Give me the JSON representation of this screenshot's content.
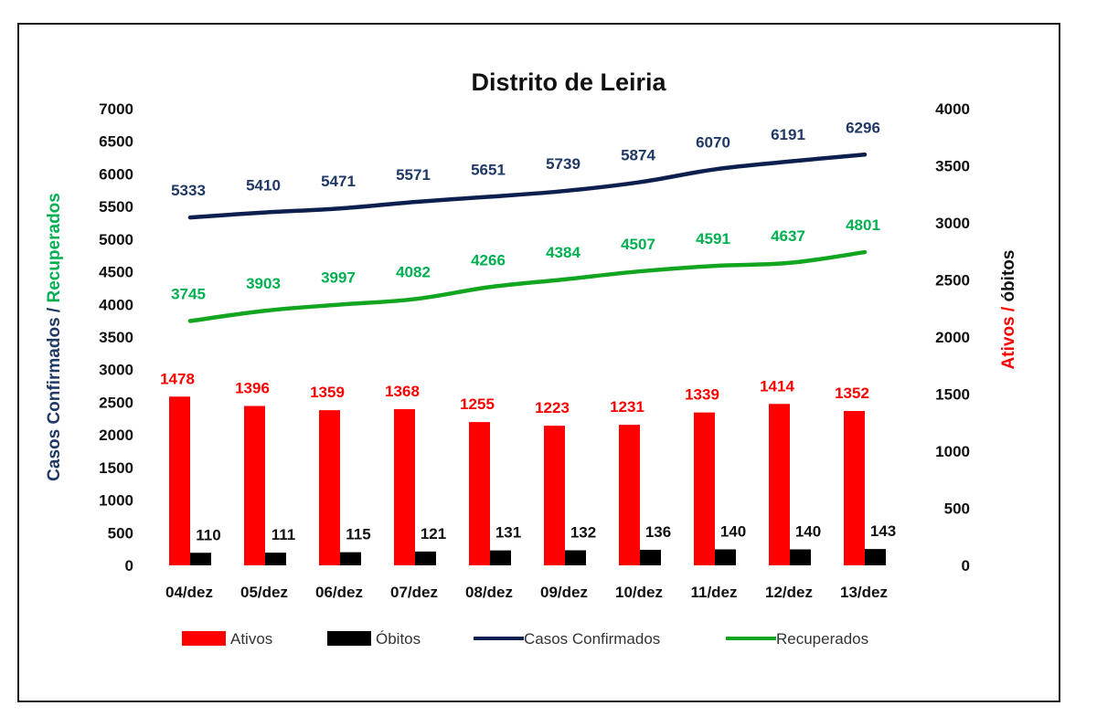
{
  "chart_data": {
    "type": "bar",
    "title": "Distrito de Leiria",
    "categories": [
      "04/dez",
      "05/dez",
      "06/dez",
      "07/dez",
      "08/dez",
      "09/dez",
      "10/dez",
      "11/dez",
      "12/dez",
      "13/dez"
    ],
    "left_axis": {
      "title_parts": [
        {
          "text": "Casos Confirmados",
          "color": "#1f3864"
        },
        {
          "text": " / ",
          "color": "#1f3864"
        },
        {
          "text": "Recuperados",
          "color": "#00b050"
        }
      ],
      "ylim": [
        0,
        7000
      ],
      "ticks": [
        "0",
        "500",
        "1000",
        "1500",
        "2000",
        "2500",
        "3000",
        "3500",
        "4000",
        "4500",
        "5000",
        "5500",
        "6000",
        "6500",
        "7000"
      ]
    },
    "right_axis": {
      "title_parts": [
        {
          "text": "Ativos",
          "color": "#ff0000"
        },
        {
          "text": " / ",
          "color": "#ff0000"
        },
        {
          "text": "óbitos",
          "color": "#111111"
        }
      ],
      "ylim": [
        0,
        4000
      ],
      "ticks": [
        "0",
        "500",
        "1000",
        "1500",
        "2000",
        "2500",
        "3000",
        "3500",
        "4000"
      ]
    },
    "series": [
      {
        "name": "Ativos",
        "kind": "bar",
        "axis": "right",
        "color": "#ff0000",
        "label_color": "#ff0000",
        "values": [
          1478,
          1396,
          1359,
          1368,
          1255,
          1223,
          1231,
          1339,
          1414,
          1352
        ]
      },
      {
        "name": "Óbitos",
        "kind": "bar",
        "axis": "right",
        "color": "#000000",
        "label_color": "#111111",
        "values": [
          110,
          111,
          115,
          121,
          131,
          132,
          136,
          140,
          140,
          143
        ]
      },
      {
        "name": "Casos Confirmados",
        "kind": "line",
        "axis": "left",
        "color": "#0d1f4f",
        "label_color": "#1f3864",
        "values": [
          5333,
          5410,
          5471,
          5571,
          5651,
          5739,
          5874,
          6070,
          6191,
          6296
        ]
      },
      {
        "name": "Recuperados",
        "kind": "line",
        "axis": "left",
        "color": "#12a51f",
        "label_color": "#00b050",
        "values": [
          3745,
          3903,
          3997,
          4082,
          4266,
          4384,
          4507,
          4591,
          4637,
          4801
        ]
      }
    ],
    "legend_position": "bottom",
    "grid": false
  }
}
